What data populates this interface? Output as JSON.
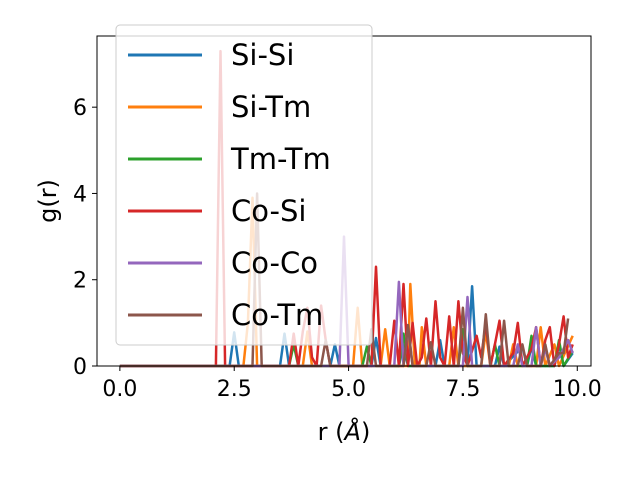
{
  "chart_data": {
    "type": "line",
    "xlabel": "r (",
    "xlabel_unit": "Å",
    "xlabel_close": ")",
    "ylabel": "g(r)",
    "xlim": [
      -0.5,
      10.3
    ],
    "ylim": [
      0,
      7.65
    ],
    "x_ticks": [
      0.0,
      2.5,
      5.0,
      7.5,
      10.0
    ],
    "x_tick_labels": [
      "0.0",
      "2.5",
      "5.0",
      "7.5",
      "10.0"
    ],
    "y_ticks": [
      0,
      2,
      4,
      6
    ],
    "y_tick_labels": [
      "0",
      "2",
      "4",
      "6"
    ],
    "grid": false,
    "legend_position": "upper-left",
    "series": [
      {
        "name": "Si-Si",
        "color": "#1f77b4",
        "points": [
          [
            0,
            0
          ],
          [
            2.4,
            0
          ],
          [
            2.5,
            0.78
          ],
          [
            2.6,
            0
          ],
          [
            3.5,
            0
          ],
          [
            3.6,
            0.75
          ],
          [
            3.7,
            0
          ],
          [
            4.6,
            0
          ],
          [
            4.7,
            0.5
          ],
          [
            4.8,
            0
          ],
          [
            5.5,
            0
          ],
          [
            5.6,
            0.65
          ],
          [
            5.7,
            0
          ],
          [
            6.1,
            0
          ],
          [
            6.2,
            0.5
          ],
          [
            6.3,
            0
          ],
          [
            6.9,
            0
          ],
          [
            7.0,
            0.6
          ],
          [
            7.1,
            0
          ],
          [
            7.6,
            0
          ],
          [
            7.7,
            1.85
          ],
          [
            7.8,
            0
          ],
          [
            8.2,
            0
          ],
          [
            8.3,
            0.45
          ],
          [
            8.4,
            0
          ],
          [
            8.8,
            0.45
          ],
          [
            8.9,
            0
          ],
          [
            9.0,
            0.45
          ],
          [
            9.1,
            0
          ],
          [
            9.5,
            0
          ],
          [
            9.6,
            0.5
          ],
          [
            9.7,
            0
          ],
          [
            9.9,
            0.3
          ]
        ]
      },
      {
        "name": "Si-Tm",
        "color": "#ff7f0e",
        "points": [
          [
            0,
            0
          ],
          [
            2.7,
            0
          ],
          [
            2.8,
            1.0
          ],
          [
            2.9,
            3.9
          ],
          [
            3.0,
            0
          ],
          [
            4.0,
            0
          ],
          [
            4.1,
            0.8
          ],
          [
            4.2,
            0
          ],
          [
            5.1,
            0
          ],
          [
            5.2,
            1.35
          ],
          [
            5.3,
            0
          ],
          [
            5.7,
            0
          ],
          [
            5.8,
            0.85
          ],
          [
            5.9,
            0
          ],
          [
            6.3,
            0
          ],
          [
            6.35,
            1.9
          ],
          [
            6.45,
            0
          ],
          [
            6.55,
            0
          ],
          [
            6.6,
            0.9
          ],
          [
            6.7,
            0
          ],
          [
            7.2,
            0
          ],
          [
            7.3,
            0.9
          ],
          [
            7.4,
            0
          ],
          [
            7.9,
            0
          ],
          [
            8.0,
            0.8
          ],
          [
            8.1,
            0
          ],
          [
            8.5,
            0
          ],
          [
            8.6,
            0.5
          ],
          [
            8.7,
            0
          ],
          [
            9.1,
            0
          ],
          [
            9.2,
            0.9
          ],
          [
            9.3,
            0
          ],
          [
            9.5,
            0.5
          ],
          [
            9.6,
            0
          ],
          [
            9.9,
            0.7
          ]
        ]
      },
      {
        "name": "Tm-Tm",
        "color": "#2ca02c",
        "points": [
          [
            0,
            0
          ],
          [
            3.7,
            0
          ],
          [
            3.8,
            0.5
          ],
          [
            3.9,
            0
          ],
          [
            5.3,
            0
          ],
          [
            5.4,
            0.45
          ],
          [
            5.5,
            0
          ],
          [
            6.1,
            0
          ],
          [
            6.2,
            0.75
          ],
          [
            6.3,
            0
          ],
          [
            7.4,
            0
          ],
          [
            7.5,
            0.85
          ],
          [
            7.6,
            0
          ],
          [
            8.1,
            0
          ],
          [
            8.2,
            0.5
          ],
          [
            8.3,
            0
          ],
          [
            8.9,
            0
          ],
          [
            9.0,
            0.7
          ],
          [
            9.1,
            0
          ],
          [
            9.5,
            0
          ],
          [
            9.6,
            0.6
          ],
          [
            9.7,
            0
          ],
          [
            9.9,
            0.35
          ]
        ]
      },
      {
        "name": "Co-Si",
        "color": "#d62728",
        "points": [
          [
            0,
            0
          ],
          [
            2.1,
            0
          ],
          [
            2.2,
            7.3
          ],
          [
            2.3,
            0
          ],
          [
            3.7,
            0
          ],
          [
            3.8,
            0.75
          ],
          [
            3.9,
            0
          ],
          [
            4.0,
            0.8
          ],
          [
            4.1,
            1.35
          ],
          [
            4.2,
            0.2
          ],
          [
            4.3,
            0
          ],
          [
            4.4,
            1.4
          ],
          [
            4.5,
            0.6
          ],
          [
            4.6,
            0
          ],
          [
            5.5,
            0
          ],
          [
            5.6,
            2.3
          ],
          [
            5.7,
            0
          ],
          [
            5.9,
            0
          ],
          [
            6.0,
            1.05
          ],
          [
            6.1,
            0
          ],
          [
            6.2,
            1.9
          ],
          [
            6.3,
            0
          ],
          [
            6.4,
            1.0
          ],
          [
            6.5,
            0
          ],
          [
            6.6,
            0.2
          ],
          [
            6.7,
            1.1
          ],
          [
            6.8,
            0
          ],
          [
            6.9,
            1.5
          ],
          [
            7.0,
            0.2
          ],
          [
            7.1,
            0
          ],
          [
            7.2,
            1.15
          ],
          [
            7.3,
            0
          ],
          [
            7.4,
            1.5
          ],
          [
            7.5,
            0.3
          ],
          [
            7.6,
            0
          ],
          [
            7.8,
            0.7
          ],
          [
            7.9,
            0.2
          ],
          [
            8.0,
            1.0
          ],
          [
            8.1,
            0
          ],
          [
            8.2,
            0.5
          ],
          [
            8.3,
            1.05
          ],
          [
            8.4,
            0
          ],
          [
            8.6,
            0.3
          ],
          [
            8.7,
            1.0
          ],
          [
            8.8,
            0
          ],
          [
            9.0,
            0.4
          ],
          [
            9.1,
            0.9
          ],
          [
            9.2,
            0
          ],
          [
            9.3,
            0.6
          ],
          [
            9.4,
            0.9
          ],
          [
            9.5,
            0
          ],
          [
            9.6,
            0.5
          ],
          [
            9.7,
            1.15
          ],
          [
            9.8,
            0.2
          ],
          [
            9.9,
            0.5
          ]
        ]
      },
      {
        "name": "Co-Co",
        "color": "#9467bd",
        "points": [
          [
            0,
            0
          ],
          [
            4.8,
            0
          ],
          [
            4.9,
            3.0
          ],
          [
            5.0,
            0
          ],
          [
            6.0,
            0
          ],
          [
            6.1,
            1.95
          ],
          [
            6.2,
            0
          ],
          [
            6.3,
            0.9
          ],
          [
            6.4,
            0
          ],
          [
            7.5,
            0
          ],
          [
            7.6,
            1.6
          ],
          [
            7.7,
            0
          ],
          [
            8.6,
            0
          ],
          [
            8.7,
            0.5
          ],
          [
            8.8,
            0
          ],
          [
            9.0,
            0
          ],
          [
            9.1,
            0.9
          ],
          [
            9.2,
            0
          ],
          [
            9.3,
            0.4
          ],
          [
            9.4,
            0
          ],
          [
            9.6,
            0.2
          ],
          [
            9.8,
            0.6
          ],
          [
            9.9,
            0.3
          ]
        ]
      },
      {
        "name": "Co-Tm",
        "color": "#8c564b",
        "points": [
          [
            0,
            0
          ],
          [
            2.9,
            0
          ],
          [
            3.0,
            4.0
          ],
          [
            3.1,
            0
          ],
          [
            4.4,
            0
          ],
          [
            4.5,
            0.6
          ],
          [
            4.6,
            0
          ],
          [
            5.4,
            0
          ],
          [
            5.5,
            0.85
          ],
          [
            5.6,
            0
          ],
          [
            6.2,
            0
          ],
          [
            6.3,
            0.95
          ],
          [
            6.4,
            0
          ],
          [
            6.7,
            0
          ],
          [
            6.8,
            0.55
          ],
          [
            6.9,
            0
          ],
          [
            7.4,
            0
          ],
          [
            7.5,
            1.35
          ],
          [
            7.6,
            0
          ],
          [
            7.9,
            0
          ],
          [
            8.0,
            1.2
          ],
          [
            8.1,
            0
          ],
          [
            8.3,
            0
          ],
          [
            8.4,
            1.05
          ],
          [
            8.5,
            0
          ],
          [
            8.7,
            0
          ],
          [
            8.8,
            0.5
          ],
          [
            8.9,
            0
          ],
          [
            9.2,
            0
          ],
          [
            9.3,
            0.5
          ],
          [
            9.4,
            0
          ],
          [
            9.6,
            0.3
          ],
          [
            9.7,
            0.3
          ],
          [
            9.8,
            1.1
          ]
        ]
      }
    ]
  }
}
